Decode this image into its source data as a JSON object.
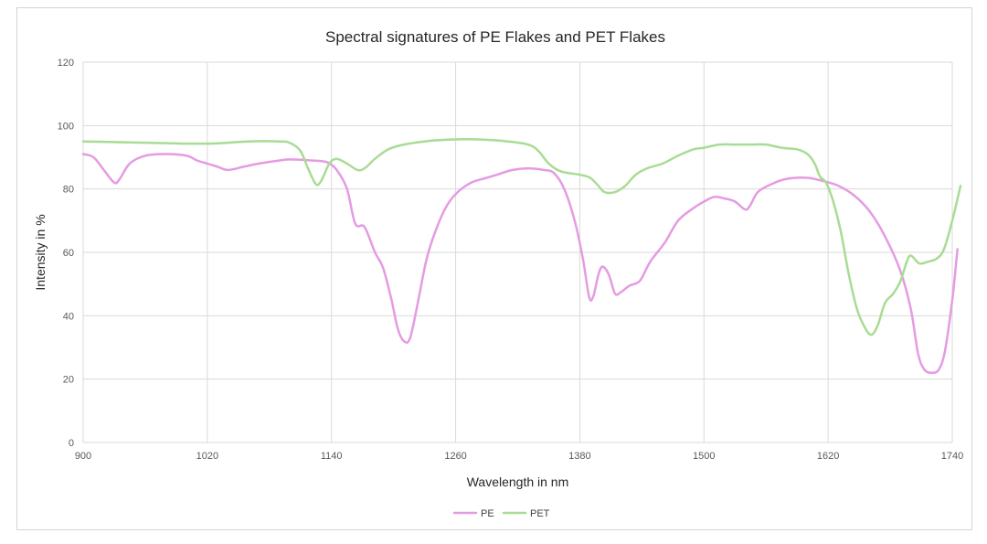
{
  "chart_data": {
    "type": "line",
    "title": "Spectral signatures of  PE Flakes and PET Flakes",
    "xlabel": "Wavelength in nm",
    "ylabel": "Intensity in %",
    "xlim": [
      900,
      1740
    ],
    "ylim": [
      0,
      120
    ],
    "x_ticks": [
      "900",
      "1020",
      "1140",
      "1260",
      "1380",
      "1500",
      "1620",
      "1740"
    ],
    "y_ticks": [
      "0",
      "20",
      "40",
      "60",
      "80",
      "100",
      "120"
    ],
    "grid": true,
    "legend_position": "bottom",
    "series": [
      {
        "name": "PE",
        "color": "#e59be2",
        "points": [
          [
            900,
            91
          ],
          [
            910,
            90
          ],
          [
            920,
            86
          ],
          [
            930,
            82
          ],
          [
            935,
            83
          ],
          [
            945,
            88
          ],
          [
            960,
            90.5
          ],
          [
            980,
            91
          ],
          [
            1000,
            90.5
          ],
          [
            1010,
            89
          ],
          [
            1020,
            88
          ],
          [
            1030,
            87
          ],
          [
            1040,
            86
          ],
          [
            1055,
            87
          ],
          [
            1070,
            88
          ],
          [
            1090,
            89
          ],
          [
            1100,
            89.3
          ],
          [
            1120,
            89
          ],
          [
            1135,
            88.5
          ],
          [
            1145,
            86
          ],
          [
            1155,
            80
          ],
          [
            1163,
            69
          ],
          [
            1172,
            68
          ],
          [
            1182,
            60
          ],
          [
            1190,
            55
          ],
          [
            1198,
            45
          ],
          [
            1204,
            36
          ],
          [
            1210,
            32
          ],
          [
            1216,
            33
          ],
          [
            1224,
            45
          ],
          [
            1232,
            58
          ],
          [
            1242,
            68
          ],
          [
            1252,
            75
          ],
          [
            1262,
            79
          ],
          [
            1275,
            82
          ],
          [
            1290,
            83.5
          ],
          [
            1300,
            84.5
          ],
          [
            1315,
            86
          ],
          [
            1330,
            86.5
          ],
          [
            1345,
            86
          ],
          [
            1355,
            85
          ],
          [
            1365,
            80
          ],
          [
            1375,
            70
          ],
          [
            1383,
            58
          ],
          [
            1389,
            46
          ],
          [
            1393,
            46
          ],
          [
            1398,
            53
          ],
          [
            1402,
            55.5
          ],
          [
            1408,
            53
          ],
          [
            1414,
            47
          ],
          [
            1420,
            47.5
          ],
          [
            1428,
            49.5
          ],
          [
            1438,
            51
          ],
          [
            1448,
            57
          ],
          [
            1462,
            63
          ],
          [
            1475,
            70
          ],
          [
            1490,
            74
          ],
          [
            1500,
            76
          ],
          [
            1510,
            77.5
          ],
          [
            1520,
            77
          ],
          [
            1530,
            76
          ],
          [
            1540,
            73.5
          ],
          [
            1545,
            75
          ],
          [
            1552,
            79
          ],
          [
            1565,
            81.5
          ],
          [
            1580,
            83.2
          ],
          [
            1600,
            83.5
          ],
          [
            1615,
            82.5
          ],
          [
            1630,
            81
          ],
          [
            1645,
            78
          ],
          [
            1660,
            73
          ],
          [
            1675,
            65
          ],
          [
            1690,
            54
          ],
          [
            1700,
            42
          ],
          [
            1707,
            28
          ],
          [
            1713,
            23
          ],
          [
            1720,
            22
          ],
          [
            1727,
            23
          ],
          [
            1733,
            29
          ],
          [
            1740,
            45
          ],
          [
            1745,
            61
          ]
        ]
      },
      {
        "name": "PET",
        "color": "#a8dc94",
        "points": [
          [
            900,
            95
          ],
          [
            930,
            94.8
          ],
          [
            960,
            94.6
          ],
          [
            1000,
            94.3
          ],
          [
            1030,
            94.4
          ],
          [
            1060,
            95
          ],
          [
            1090,
            95
          ],
          [
            1100,
            94.5
          ],
          [
            1110,
            92
          ],
          [
            1118,
            86
          ],
          [
            1125,
            81.5
          ],
          [
            1130,
            82.5
          ],
          [
            1138,
            88
          ],
          [
            1145,
            89.5
          ],
          [
            1155,
            88
          ],
          [
            1165,
            86
          ],
          [
            1172,
            86.5
          ],
          [
            1182,
            89.5
          ],
          [
            1195,
            92.5
          ],
          [
            1210,
            94
          ],
          [
            1230,
            95
          ],
          [
            1250,
            95.5
          ],
          [
            1270,
            95.7
          ],
          [
            1290,
            95.5
          ],
          [
            1310,
            95
          ],
          [
            1330,
            94
          ],
          [
            1340,
            92
          ],
          [
            1350,
            88
          ],
          [
            1362,
            85.5
          ],
          [
            1380,
            84.5
          ],
          [
            1390,
            83.5
          ],
          [
            1398,
            81
          ],
          [
            1404,
            79
          ],
          [
            1414,
            79
          ],
          [
            1424,
            81
          ],
          [
            1434,
            84.5
          ],
          [
            1445,
            86.5
          ],
          [
            1460,
            88
          ],
          [
            1475,
            90.5
          ],
          [
            1490,
            92.5
          ],
          [
            1500,
            93
          ],
          [
            1515,
            94
          ],
          [
            1530,
            94
          ],
          [
            1545,
            94
          ],
          [
            1560,
            94
          ],
          [
            1575,
            93
          ],
          [
            1590,
            92.5
          ],
          [
            1600,
            91
          ],
          [
            1607,
            88
          ],
          [
            1612,
            84
          ],
          [
            1618,
            82
          ],
          [
            1625,
            76
          ],
          [
            1632,
            67
          ],
          [
            1640,
            53
          ],
          [
            1648,
            42
          ],
          [
            1656,
            36
          ],
          [
            1662,
            34
          ],
          [
            1668,
            37
          ],
          [
            1675,
            44
          ],
          [
            1683,
            47
          ],
          [
            1690,
            51
          ],
          [
            1696,
            57
          ],
          [
            1700,
            59
          ],
          [
            1708,
            56.5
          ],
          [
            1716,
            57
          ],
          [
            1725,
            58
          ],
          [
            1732,
            61
          ],
          [
            1740,
            70
          ],
          [
            1748,
            81
          ]
        ]
      }
    ]
  }
}
